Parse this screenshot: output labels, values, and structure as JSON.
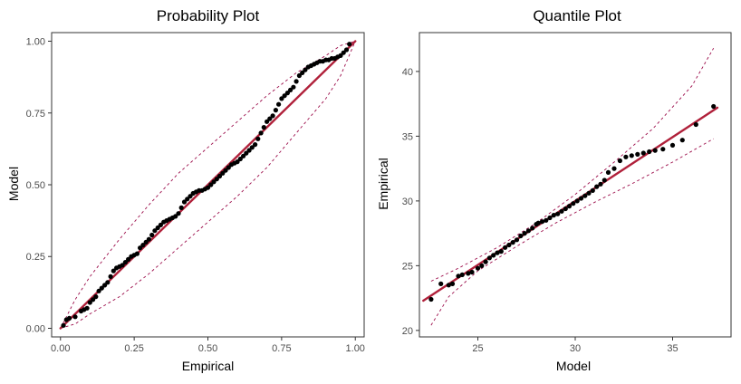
{
  "colors": {
    "ref_line": "#b0203a",
    "band": "#9c0c4a",
    "points": "#000000",
    "panel_border": "#333333"
  },
  "chart_data": [
    {
      "type": "scatter",
      "title": "Probability Plot",
      "xlabel": "Empirical",
      "ylabel": "Model",
      "xlim": [
        -0.03,
        1.03
      ],
      "ylim": [
        -0.03,
        1.03
      ],
      "xticks": [
        0.0,
        0.25,
        0.5,
        0.75,
        1.0
      ],
      "yticks": [
        0.0,
        0.25,
        0.5,
        0.75,
        1.0
      ],
      "xtick_labels": [
        "0.00",
        "0.25",
        "0.50",
        "0.75",
        "1.00"
      ],
      "ytick_labels": [
        "0.00",
        "0.25",
        "0.50",
        "0.75",
        "1.00"
      ],
      "grid": false,
      "reference_line": [
        [
          0.0,
          0.0
        ],
        [
          1.0,
          1.0
        ]
      ],
      "band_upper": [
        [
          0.0,
          0.0
        ],
        [
          0.05,
          0.1
        ],
        [
          0.1,
          0.18
        ],
        [
          0.2,
          0.31
        ],
        [
          0.3,
          0.43
        ],
        [
          0.4,
          0.54
        ],
        [
          0.5,
          0.63
        ],
        [
          0.6,
          0.72
        ],
        [
          0.7,
          0.81
        ],
        [
          0.8,
          0.89
        ],
        [
          0.9,
          0.95
        ],
        [
          0.95,
          0.985
        ],
        [
          1.0,
          1.0
        ]
      ],
      "band_lower": [
        [
          0.0,
          0.0
        ],
        [
          0.05,
          0.015
        ],
        [
          0.1,
          0.05
        ],
        [
          0.2,
          0.11
        ],
        [
          0.3,
          0.19
        ],
        [
          0.4,
          0.28
        ],
        [
          0.5,
          0.37
        ],
        [
          0.6,
          0.46
        ],
        [
          0.7,
          0.56
        ],
        [
          0.8,
          0.68
        ],
        [
          0.9,
          0.8
        ],
        [
          0.95,
          0.88
        ],
        [
          1.0,
          1.0
        ]
      ],
      "points": {
        "x": [
          0.01,
          0.02,
          0.03,
          0.05,
          0.07,
          0.08,
          0.09,
          0.1,
          0.11,
          0.12,
          0.13,
          0.14,
          0.15,
          0.16,
          0.17,
          0.18,
          0.19,
          0.2,
          0.21,
          0.22,
          0.23,
          0.24,
          0.25,
          0.26,
          0.27,
          0.28,
          0.29,
          0.3,
          0.31,
          0.32,
          0.33,
          0.34,
          0.35,
          0.36,
          0.37,
          0.38,
          0.39,
          0.4,
          0.41,
          0.42,
          0.43,
          0.44,
          0.45,
          0.46,
          0.47,
          0.48,
          0.49,
          0.5,
          0.51,
          0.52,
          0.53,
          0.54,
          0.55,
          0.56,
          0.57,
          0.58,
          0.59,
          0.6,
          0.61,
          0.62,
          0.63,
          0.64,
          0.65,
          0.66,
          0.67,
          0.68,
          0.69,
          0.7,
          0.71,
          0.72,
          0.73,
          0.74,
          0.75,
          0.76,
          0.77,
          0.78,
          0.79,
          0.8,
          0.81,
          0.82,
          0.83,
          0.84,
          0.85,
          0.86,
          0.87,
          0.88,
          0.89,
          0.9,
          0.91,
          0.92,
          0.93,
          0.94,
          0.95,
          0.96,
          0.97,
          0.98
        ],
        "y": [
          0.01,
          0.03,
          0.035,
          0.04,
          0.06,
          0.065,
          0.07,
          0.09,
          0.1,
          0.11,
          0.13,
          0.14,
          0.15,
          0.16,
          0.18,
          0.2,
          0.21,
          0.215,
          0.22,
          0.23,
          0.24,
          0.25,
          0.255,
          0.26,
          0.28,
          0.29,
          0.3,
          0.31,
          0.325,
          0.34,
          0.35,
          0.36,
          0.37,
          0.375,
          0.38,
          0.385,
          0.39,
          0.4,
          0.42,
          0.44,
          0.45,
          0.46,
          0.47,
          0.475,
          0.48,
          0.48,
          0.485,
          0.49,
          0.5,
          0.51,
          0.52,
          0.53,
          0.54,
          0.55,
          0.56,
          0.57,
          0.575,
          0.58,
          0.59,
          0.6,
          0.61,
          0.62,
          0.63,
          0.64,
          0.66,
          0.68,
          0.7,
          0.72,
          0.73,
          0.74,
          0.76,
          0.78,
          0.8,
          0.81,
          0.82,
          0.83,
          0.84,
          0.86,
          0.88,
          0.89,
          0.9,
          0.91,
          0.915,
          0.92,
          0.925,
          0.93,
          0.93,
          0.935,
          0.935,
          0.94,
          0.94,
          0.945,
          0.95,
          0.96,
          0.97,
          0.99
        ]
      }
    },
    {
      "type": "scatter",
      "title": "Quantile Plot",
      "xlabel": "Model",
      "ylabel": "Empirical",
      "xlim": [
        22.0,
        38.0
      ],
      "ylim": [
        19.5,
        43.0
      ],
      "xticks": [
        25,
        30,
        35
      ],
      "yticks": [
        20,
        25,
        30,
        35,
        40
      ],
      "xtick_labels": [
        "25",
        "30",
        "35"
      ],
      "ytick_labels": [
        "20",
        "25",
        "30",
        "35",
        "40"
      ],
      "grid": false,
      "reference_line": [
        [
          22.2,
          22.3
        ],
        [
          37.3,
          37.2
        ]
      ],
      "band_upper": [
        [
          22.6,
          23.8
        ],
        [
          24.0,
          24.8
        ],
        [
          26.0,
          26.4
        ],
        [
          28.0,
          28.3
        ],
        [
          30.0,
          30.5
        ],
        [
          32.0,
          33.0
        ],
        [
          34.0,
          35.6
        ],
        [
          36.0,
          38.9
        ],
        [
          37.1,
          41.8
        ]
      ],
      "band_lower": [
        [
          22.6,
          20.4
        ],
        [
          23.5,
          22.6
        ],
        [
          25.0,
          24.6
        ],
        [
          27.0,
          26.5
        ],
        [
          29.0,
          28.3
        ],
        [
          31.0,
          29.9
        ],
        [
          33.0,
          31.4
        ],
        [
          35.0,
          33.0
        ],
        [
          37.1,
          34.8
        ]
      ],
      "points": {
        "x": [
          22.6,
          23.1,
          23.5,
          23.7,
          24.0,
          24.2,
          24.5,
          24.7,
          25.0,
          25.2,
          25.4,
          25.6,
          25.8,
          26.0,
          26.2,
          26.4,
          26.6,
          26.8,
          27.0,
          27.2,
          27.4,
          27.6,
          27.8,
          28.0,
          28.1,
          28.3,
          28.5,
          28.7,
          28.9,
          29.1,
          29.3,
          29.5,
          29.7,
          29.9,
          30.1,
          30.3,
          30.5,
          30.7,
          30.9,
          31.1,
          31.3,
          31.5,
          31.7,
          32.0,
          32.3,
          32.6,
          32.9,
          33.2,
          33.5,
          33.8,
          34.1,
          34.5,
          35.0,
          35.5,
          36.2,
          37.1
        ],
        "y": [
          22.4,
          23.6,
          23.5,
          23.6,
          24.2,
          24.3,
          24.4,
          24.5,
          24.8,
          25.0,
          25.3,
          25.6,
          25.8,
          26.0,
          26.1,
          26.4,
          26.6,
          26.8,
          27.0,
          27.3,
          27.5,
          27.7,
          27.9,
          28.2,
          28.3,
          28.4,
          28.5,
          28.7,
          28.9,
          29.0,
          29.2,
          29.4,
          29.6,
          29.8,
          30.0,
          30.2,
          30.4,
          30.6,
          30.8,
          31.1,
          31.3,
          31.6,
          32.2,
          32.5,
          33.1,
          33.4,
          33.5,
          33.6,
          33.7,
          33.8,
          33.9,
          34.0,
          34.3,
          34.7,
          35.9,
          37.3
        ]
      }
    }
  ]
}
